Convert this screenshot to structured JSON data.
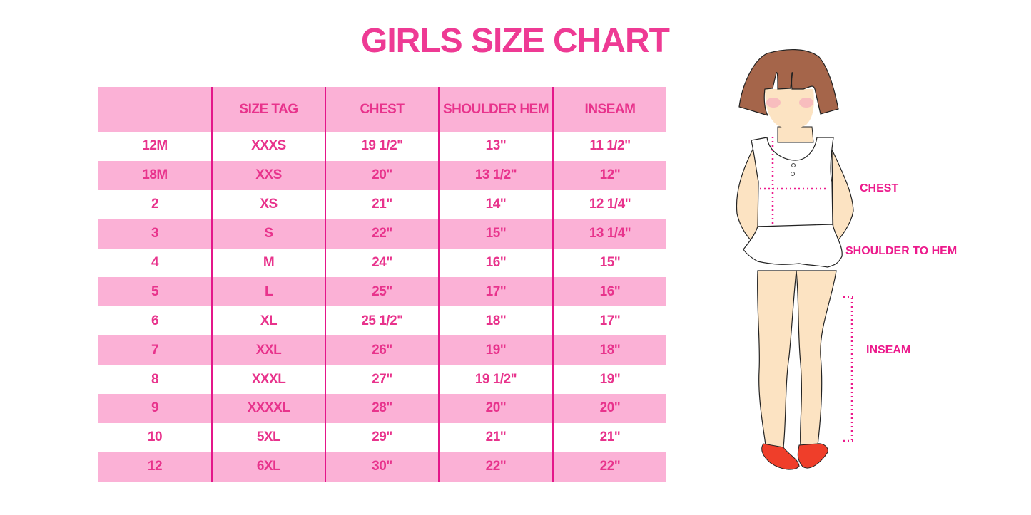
{
  "title": "GIRLS SIZE CHART",
  "table": {
    "headers": [
      "",
      "SIZE TAG",
      "CHEST",
      "SHOULDER HEM",
      "INSEAM"
    ],
    "rows": [
      [
        "12M",
        "XXXS",
        "19 1/2\"",
        "13\"",
        "11 1/2\""
      ],
      [
        "18M",
        "XXS",
        "20\"",
        "13 1/2\"",
        "12\""
      ],
      [
        "2",
        "XS",
        "21\"",
        "14\"",
        "12 1/4\""
      ],
      [
        "3",
        "S",
        "22\"",
        "15\"",
        "13 1/4\""
      ],
      [
        "4",
        "M",
        "24\"",
        "16\"",
        "15\""
      ],
      [
        "5",
        "L",
        "25\"",
        "17\"",
        "16\""
      ],
      [
        "6",
        "XL",
        "25 1/2\"",
        "18\"",
        "17\""
      ],
      [
        "7",
        "XXL",
        "26\"",
        "19\"",
        "18\""
      ],
      [
        "8",
        "XXXL",
        "27\"",
        "19 1/2\"",
        "19\""
      ],
      [
        "9",
        "XXXXL",
        "28\"",
        "20\"",
        "20\""
      ],
      [
        "10",
        "5XL",
        "29\"",
        "21\"",
        "21\""
      ],
      [
        "12",
        "6XL",
        "30\"",
        "22\"",
        "22\""
      ]
    ]
  },
  "illustration": {
    "labels": {
      "chest": "CHEST",
      "shoulder_to_hem": "SHOULDER TO HEM",
      "inseam": "INSEAM"
    }
  },
  "colors": {
    "accent": "#ee3a94",
    "row_pink": "#fbb1d6",
    "divider": "#e4168a"
  }
}
